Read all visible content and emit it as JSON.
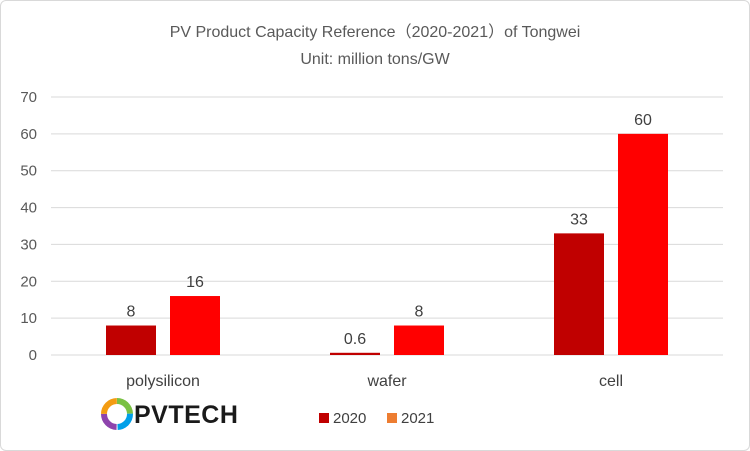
{
  "chart_data": {
    "type": "bar",
    "title": "PV Product Capacity Reference（2020-2021）of Tongwei",
    "subtitle": "Unit: million tons/GW",
    "categories": [
      "polysilicon",
      "wafer",
      "cell"
    ],
    "series": [
      {
        "name": "2020",
        "values": [
          8,
          0.6,
          33
        ],
        "labels": [
          "8",
          "0.6",
          "33"
        ],
        "color": "#c00000"
      },
      {
        "name": "2021",
        "values": [
          16,
          8,
          60
        ],
        "labels": [
          "16",
          "8",
          "60"
        ],
        "color": "#ff0000"
      }
    ],
    "legend_swatch_colors": [
      "#c00000",
      "#ed7d31"
    ],
    "ylim": [
      0,
      70
    ],
    "yticks": [
      "0",
      "10",
      "20",
      "30",
      "40",
      "50",
      "60",
      "70"
    ],
    "grid": true,
    "legend_position": "bottom"
  },
  "logo": {
    "text": "PVTECH",
    "icon": "pvtech-ring-icon"
  },
  "colors": {
    "gridline": "#d9d9d9",
    "text": "#595959"
  }
}
